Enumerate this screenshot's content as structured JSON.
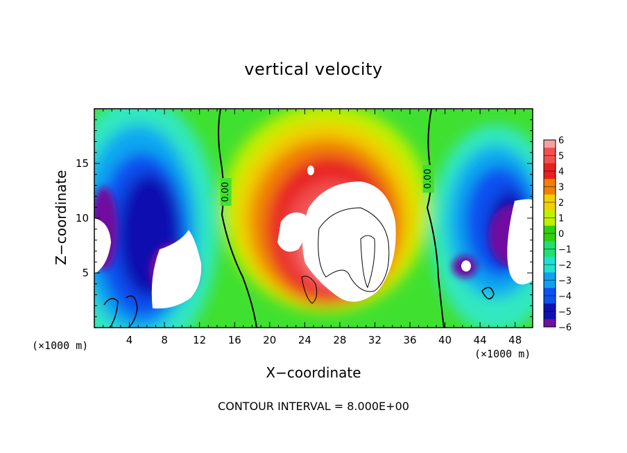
{
  "chart_data": {
    "type": "heatmap",
    "title": "vertical velocity",
    "xlabel": "X−coordinate",
    "ylabel": "Z−coordinate",
    "x_unit_left": "(×1000 m)",
    "x_unit_right": "(×1000 m)",
    "xlim": [
      0,
      50
    ],
    "ylim": [
      0,
      20
    ],
    "xticks": [
      4,
      8,
      12,
      16,
      20,
      24,
      28,
      32,
      36,
      40,
      44,
      48
    ],
    "xtick_labels": [
      "4",
      "8",
      "12",
      "16",
      "20",
      "24",
      "28",
      "32",
      "36",
      "40",
      "44",
      "48"
    ],
    "yticks": [
      5,
      10,
      15
    ],
    "ytick_labels": [
      "5",
      "10",
      "15"
    ],
    "colorbar": {
      "levels": [
        6,
        5,
        4,
        3,
        2,
        1,
        0,
        -1,
        -2,
        -3,
        -4,
        -5,
        -6
      ],
      "labels": [
        "6",
        "5",
        "4",
        "3",
        "2",
        "1",
        "0",
        "−1",
        "−2",
        "−3",
        "−4",
        "−5",
        "−6"
      ],
      "colors": [
        "#f5a0a0",
        "#f05050",
        "#e82020",
        "#f08000",
        "#f0d000",
        "#c0f000",
        "#30d010",
        "#20e070",
        "#20e0d0",
        "#10a0f0",
        "#1050f0",
        "#1010b0",
        "#7010a0"
      ]
    },
    "contour_labels": [
      {
        "text": "0.00",
        "x": 15.0,
        "z": 12.4
      },
      {
        "text": "0.00",
        "x": 38.1,
        "z": 13.6
      }
    ],
    "features": [
      {
        "kind": "downdraft",
        "x": [
          1,
          14
        ],
        "z": [
          1,
          18
        ],
        "min": -6
      },
      {
        "kind": "updraft",
        "x": [
          17,
          38
        ],
        "z": [
          0,
          17
        ],
        "max": 6
      },
      {
        "kind": "downdraft",
        "x": [
          40,
          50
        ],
        "z": [
          1,
          17
        ],
        "min": -6
      }
    ]
  },
  "contour_note": "CONTOUR INTERVAL = 8.000E+00"
}
